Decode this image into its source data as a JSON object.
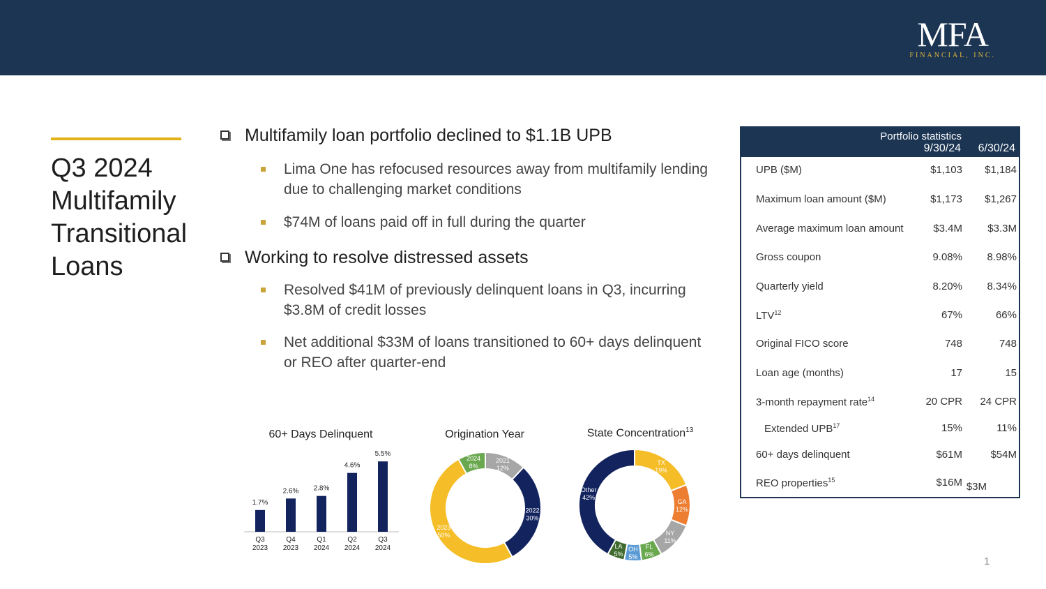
{
  "logo": {
    "main": "MFA",
    "sub": "FINANCIAL, INC."
  },
  "title": "Q3 2024 Multifamily Transitional Loans",
  "title_lines": [
    "Q3 2024",
    "Multifamily",
    "Transitional",
    "Loans"
  ],
  "bullets": {
    "b1": "Multifamily loan portfolio declined to $1.1B UPB",
    "b1_sub": [
      "Lima One has refocused resources away from multifamily lending due to challenging market conditions",
      "$74M of loans paid off in full during the quarter"
    ],
    "b2": "Working to resolve distressed assets",
    "b2_sub": [
      "Resolved $41M of previously delinquent loans in Q3, incurring $3.8M of credit losses",
      "Net additional $33M of loans transitioned to 60+ days delinquent or REO after quarter-end"
    ]
  },
  "chart_data": [
    {
      "type": "bar",
      "title": "60+ Days Delinquent",
      "categories": [
        [
          "Q3",
          "2023"
        ],
        [
          "Q4",
          "2023"
        ],
        [
          "Q1",
          "2024"
        ],
        [
          "Q2",
          "2024"
        ],
        [
          "Q3",
          "2024"
        ]
      ],
      "values": [
        1.7,
        2.6,
        2.8,
        4.6,
        5.5
      ],
      "labels": [
        "1.7%",
        "2.6%",
        "2.8%",
        "4.6%",
        "5.5%"
      ],
      "color": "#12235e",
      "ylim": [
        0,
        6
      ]
    },
    {
      "type": "pie",
      "title": "Origination Year",
      "slices": [
        {
          "name": "2021",
          "value": 12,
          "label": "12%",
          "color": "#a6a6a6"
        },
        {
          "name": "2022",
          "value": 30,
          "label": "30%",
          "color": "#12235e"
        },
        {
          "name": "2023",
          "value": 50,
          "label": "50%",
          "color": "#f5bd27"
        },
        {
          "name": "2024",
          "value": 8,
          "label": "8%",
          "color": "#6aa84f"
        }
      ]
    },
    {
      "type": "pie",
      "title": "State Concentration",
      "title_sup": "13",
      "slices": [
        {
          "name": "TX",
          "value": 19,
          "label": "19%",
          "color": "#f5bd27"
        },
        {
          "name": "GA",
          "value": 12,
          "label": "12%",
          "color": "#ed7d31"
        },
        {
          "name": "NY",
          "value": 11,
          "label": "11%",
          "color": "#a6a6a6"
        },
        {
          "name": "FL",
          "value": 6,
          "label": "6%",
          "color": "#6aa84f"
        },
        {
          "name": "OH",
          "value": 5,
          "label": "5%",
          "color": "#5b9bd5"
        },
        {
          "name": "LA",
          "value": 5,
          "label": "5%",
          "color": "#3f6b2e"
        },
        {
          "name": "Other",
          "value": 42,
          "label": "42%",
          "color": "#12235e"
        }
      ]
    }
  ],
  "stats": {
    "title": "Portfolio statistics",
    "col1": "9/30/24",
    "col2": "6/30/24",
    "rows": [
      {
        "label": "UPB ($M)",
        "sup": "",
        "v1": "$1,103",
        "v2": "$1,184"
      },
      {
        "label": "Maximum loan amount ($M)",
        "sup": "",
        "v1": "$1,173",
        "v2": "$1,267"
      },
      {
        "label": "Average maximum loan amount",
        "sup": "",
        "v1": "$3.4M",
        "v2": "$3.3M"
      },
      {
        "label": "Gross coupon",
        "sup": "",
        "v1": "9.08%",
        "v2": "8.98%"
      },
      {
        "label": "Quarterly yield",
        "sup": "",
        "v1": "8.20%",
        "v2": "8.34%"
      },
      {
        "label": "LTV",
        "sup": "12",
        "v1": "67%",
        "v2": "66%"
      },
      {
        "label": "Original FICO score",
        "sup": "",
        "v1": "748",
        "v2": "748"
      },
      {
        "label": "Loan age (months)",
        "sup": "",
        "v1": "17",
        "v2": "15"
      },
      {
        "label": "3-month repayment rate",
        "sup": "14",
        "v1": "20 CPR",
        "v2": "24 CPR"
      },
      {
        "label": "Extended UPB",
        "sup": "17",
        "v1": "15%",
        "v2": "11%"
      },
      {
        "label": "60+ days delinquent",
        "sup": "",
        "v1": "$61M",
        "v2": "$54M"
      },
      {
        "label": "REO  properties",
        "sup": "15",
        "v1": "$16M",
        "v2": "$3M"
      }
    ]
  },
  "page_number": "1"
}
